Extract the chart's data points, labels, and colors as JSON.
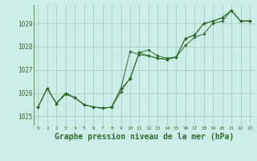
{
  "background_color": "#cceee8",
  "grid_color": "#99ccbb",
  "line_color": "#2d6e2d",
  "marker_color": "#2d6e2d",
  "title": "Graphe pression niveau de la mer (hPa)",
  "title_fontsize": 7,
  "ylim": [
    1024.6,
    1029.8
  ],
  "xlim": [
    -0.5,
    23.5
  ],
  "yticks": [
    1025,
    1026,
    1027,
    1028,
    1029
  ],
  "xtick_labels": [
    "0",
    "1",
    "2",
    "3",
    "4",
    "5",
    "6",
    "7",
    "8",
    "9",
    "10",
    "11",
    "12",
    "13",
    "14",
    "15",
    "16",
    "17",
    "18",
    "19",
    "20",
    "21",
    "22",
    "23"
  ],
  "series1": [
    1025.4,
    1026.2,
    1025.55,
    1025.95,
    1025.8,
    1025.5,
    1025.4,
    1025.35,
    1025.4,
    1026.05,
    1026.65,
    1027.75,
    1027.85,
    1027.6,
    1027.5,
    1027.55,
    1028.05,
    1028.4,
    1028.55,
    1029.0,
    1029.1,
    1029.55,
    1029.1,
    1029.1
  ],
  "series2": [
    1025.4,
    1026.2,
    1025.55,
    1026.0,
    1025.8,
    1025.5,
    1025.4,
    1025.35,
    1025.4,
    1026.2,
    1027.8,
    1027.65,
    1027.6,
    1027.5,
    1027.45,
    1027.55,
    1028.35,
    1028.5,
    1029.0,
    1029.1,
    1029.25,
    1029.55,
    1029.1,
    1029.1
  ],
  "series3": [
    1025.4,
    1026.2,
    1025.55,
    1026.0,
    1025.8,
    1025.5,
    1025.4,
    1025.35,
    1025.4,
    1026.2,
    1026.6,
    1027.75,
    1027.6,
    1027.5,
    1027.45,
    1027.55,
    1028.35,
    1028.5,
    1029.0,
    1029.1,
    1029.25,
    1029.55,
    1029.1,
    1029.1
  ]
}
